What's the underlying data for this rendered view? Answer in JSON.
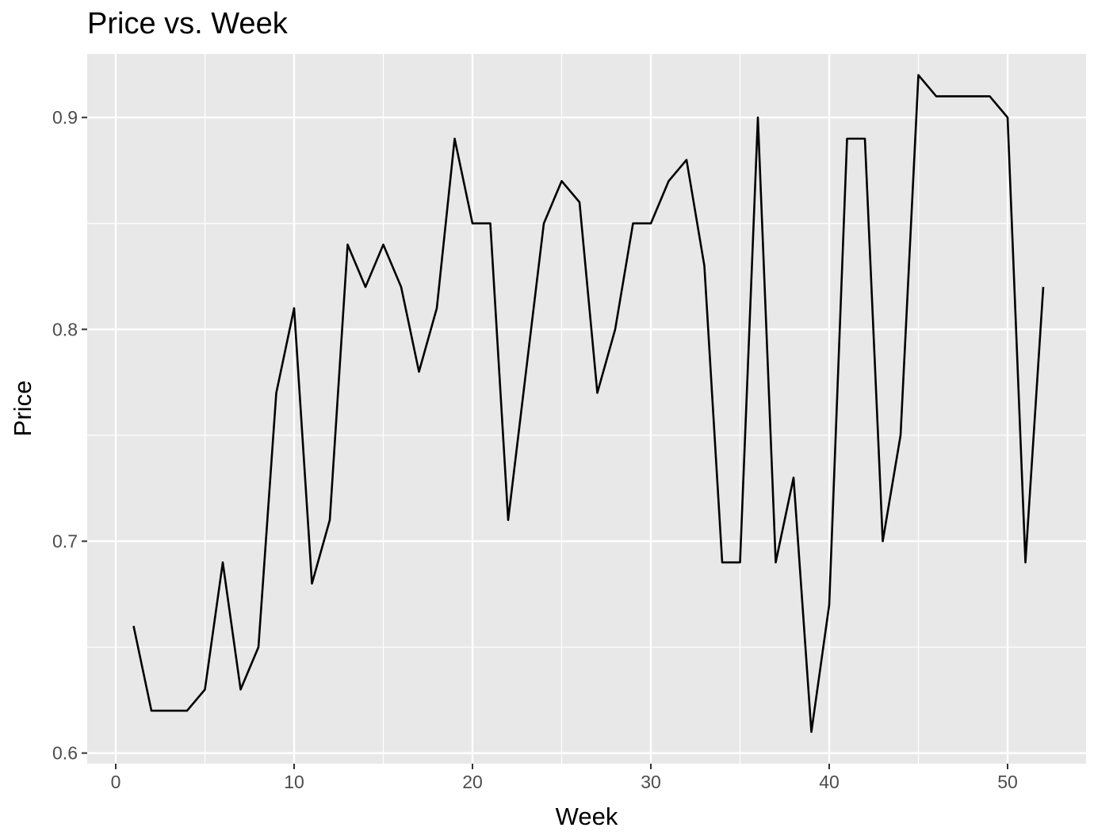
{
  "chart_data": {
    "type": "line",
    "title": "Price vs. Week",
    "xlabel": "Week",
    "ylabel": "Price",
    "xlim": [
      -1.6,
      54.4
    ],
    "ylim": [
      0.595,
      0.93
    ],
    "x_ticks": [
      0,
      10,
      20,
      30,
      40,
      50
    ],
    "x_tick_labels": [
      "0",
      "10",
      "20",
      "30",
      "40",
      "50"
    ],
    "y_ticks": [
      0.6,
      0.7,
      0.8,
      0.9
    ],
    "y_tick_labels": [
      "0.6",
      "0.7",
      "0.8",
      "0.9"
    ],
    "grid": true,
    "legend": "none",
    "colors": {
      "panel_background": "#e8e8e8",
      "grid": "#ffffff",
      "line": "#000000",
      "tick": "#333333"
    },
    "series": [
      {
        "x": [
          1,
          2,
          3,
          4,
          5,
          6,
          7,
          8,
          9,
          10,
          11,
          12,
          13,
          14,
          15,
          16,
          17,
          18,
          19,
          20,
          21,
          22,
          23,
          24,
          25,
          26,
          27,
          28,
          29,
          30,
          31,
          32,
          33,
          34,
          35,
          36,
          37,
          38,
          39,
          40,
          41,
          42,
          43,
          44,
          45,
          46,
          47,
          48,
          49,
          50,
          51,
          52
        ],
        "y": [
          0.66,
          0.62,
          0.62,
          0.62,
          0.63,
          0.69,
          0.63,
          0.65,
          0.77,
          0.81,
          0.68,
          0.71,
          0.84,
          0.82,
          0.84,
          0.82,
          0.78,
          0.81,
          0.89,
          0.85,
          0.85,
          0.71,
          0.78,
          0.85,
          0.87,
          0.86,
          0.77,
          0.8,
          0.85,
          0.85,
          0.87,
          0.88,
          0.83,
          0.69,
          0.69,
          0.9,
          0.69,
          0.73,
          0.61,
          0.67,
          0.89,
          0.89,
          0.7,
          0.75,
          0.92,
          0.91,
          0.91,
          0.91,
          0.91,
          0.9,
          0.69,
          0.82
        ]
      }
    ]
  }
}
